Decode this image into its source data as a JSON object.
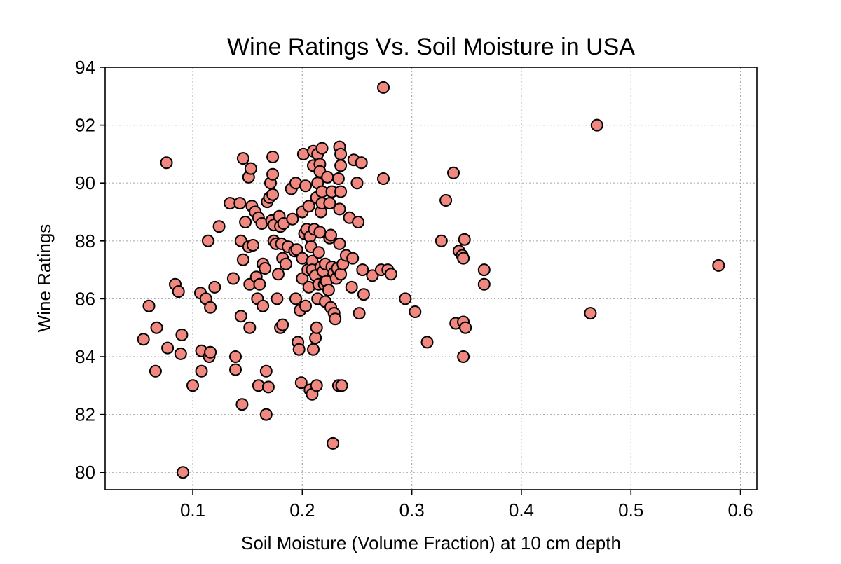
{
  "chart_data": {
    "type": "scatter",
    "title": "Wine Ratings Vs. Soil Moisture in USA",
    "xlabel": "Soil Moisture (Volume Fraction) at 10 cm depth",
    "ylabel": "Wine Ratings",
    "xlim": [
      0.02,
      0.615
    ],
    "ylim": [
      79.4,
      94
    ],
    "xticks": [
      0.1,
      0.2,
      0.3,
      0.4,
      0.5,
      0.6
    ],
    "xtick_labels": [
      "0.1",
      "0.2",
      "0.3",
      "0.4",
      "0.5",
      "0.6"
    ],
    "yticks": [
      80,
      82,
      84,
      86,
      88,
      90,
      92,
      94
    ],
    "ytick_labels": [
      "80",
      "82",
      "84",
      "86",
      "88",
      "90",
      "92",
      "94"
    ],
    "grid": true,
    "grid_style": "dotted",
    "legend": "none",
    "marker_color": "#f08880",
    "marker_edge_color": "#000000",
    "points": [
      [
        0.055,
        84.6
      ],
      [
        0.06,
        85.75
      ],
      [
        0.066,
        83.5
      ],
      [
        0.067,
        85.0
      ],
      [
        0.076,
        90.7
      ],
      [
        0.077,
        84.3
      ],
      [
        0.084,
        86.5
      ],
      [
        0.087,
        86.25
      ],
      [
        0.089,
        84.1
      ],
      [
        0.09,
        84.75
      ],
      [
        0.091,
        80.0
      ],
      [
        0.1,
        83.0
      ],
      [
        0.107,
        86.2
      ],
      [
        0.108,
        84.2
      ],
      [
        0.108,
        83.5
      ],
      [
        0.112,
        86.0
      ],
      [
        0.114,
        88.0
      ],
      [
        0.115,
        84.0
      ],
      [
        0.116,
        85.7
      ],
      [
        0.116,
        84.15
      ],
      [
        0.12,
        86.4
      ],
      [
        0.124,
        88.5
      ],
      [
        0.134,
        89.3
      ],
      [
        0.137,
        86.7
      ],
      [
        0.139,
        84.0
      ],
      [
        0.139,
        83.55
      ],
      [
        0.143,
        89.3
      ],
      [
        0.144,
        88.0
      ],
      [
        0.144,
        85.4
      ],
      [
        0.145,
        82.35
      ],
      [
        0.146,
        90.85
      ],
      [
        0.146,
        87.35
      ],
      [
        0.148,
        88.65
      ],
      [
        0.151,
        87.8
      ],
      [
        0.151,
        90.2
      ],
      [
        0.152,
        86.5
      ],
      [
        0.152,
        85.0
      ],
      [
        0.153,
        90.5
      ],
      [
        0.154,
        89.2
      ],
      [
        0.155,
        87.85
      ],
      [
        0.157,
        89.0
      ],
      [
        0.158,
        86.75
      ],
      [
        0.159,
        86.0
      ],
      [
        0.16,
        88.8
      ],
      [
        0.16,
        83.0
      ],
      [
        0.161,
        86.5
      ],
      [
        0.163,
        88.6
      ],
      [
        0.164,
        87.2
      ],
      [
        0.164,
        85.75
      ],
      [
        0.166,
        87.05
      ],
      [
        0.167,
        82.0
      ],
      [
        0.167,
        83.5
      ],
      [
        0.168,
        89.35
      ],
      [
        0.169,
        82.95
      ],
      [
        0.17,
        89.5
      ],
      [
        0.171,
        90.0
      ],
      [
        0.172,
        88.7
      ],
      [
        0.173,
        90.9
      ],
      [
        0.173,
        90.3
      ],
      [
        0.173,
        89.6
      ],
      [
        0.174,
        88.55
      ],
      [
        0.174,
        88.0
      ],
      [
        0.176,
        87.9
      ],
      [
        0.177,
        86.0
      ],
      [
        0.178,
        86.85
      ],
      [
        0.179,
        88.85
      ],
      [
        0.18,
        88.5
      ],
      [
        0.18,
        85.0
      ],
      [
        0.181,
        87.9
      ],
      [
        0.182,
        85.1
      ],
      [
        0.182,
        87.4
      ],
      [
        0.183,
        88.6
      ],
      [
        0.185,
        87.2
      ],
      [
        0.187,
        87.8
      ],
      [
        0.19,
        89.8
      ],
      [
        0.191,
        88.75
      ],
      [
        0.193,
        87.65
      ],
      [
        0.194,
        90.0
      ],
      [
        0.194,
        86.0
      ],
      [
        0.195,
        87.7
      ],
      [
        0.196,
        84.5
      ],
      [
        0.197,
        84.25
      ],
      [
        0.198,
        85.6
      ],
      [
        0.199,
        83.1
      ],
      [
        0.2,
        89.0
      ],
      [
        0.2,
        87.4
      ],
      [
        0.2,
        86.7
      ],
      [
        0.201,
        91.0
      ],
      [
        0.202,
        88.25
      ],
      [
        0.203,
        89.9
      ],
      [
        0.203,
        85.75
      ],
      [
        0.204,
        88.4
      ],
      [
        0.205,
        87.0
      ],
      [
        0.206,
        89.2
      ],
      [
        0.206,
        86.4
      ],
      [
        0.207,
        82.85
      ],
      [
        0.207,
        88.15
      ],
      [
        0.208,
        87.8
      ],
      [
        0.209,
        87.3
      ],
      [
        0.209,
        87.0
      ],
      [
        0.209,
        82.7
      ],
      [
        0.21,
        84.25
      ],
      [
        0.21,
        90.6
      ],
      [
        0.21,
        91.1
      ],
      [
        0.211,
        88.4
      ],
      [
        0.212,
        86.8
      ],
      [
        0.212,
        84.65
      ],
      [
        0.213,
        83.0
      ],
      [
        0.213,
        89.5
      ],
      [
        0.213,
        85.0
      ],
      [
        0.214,
        91.0
      ],
      [
        0.214,
        86.0
      ],
      [
        0.214,
        90.0
      ],
      [
        0.215,
        87.6
      ],
      [
        0.215,
        86.5
      ],
      [
        0.216,
        90.65
      ],
      [
        0.216,
        90.4
      ],
      [
        0.216,
        88.3
      ],
      [
        0.217,
        89.0
      ],
      [
        0.217,
        87.1
      ],
      [
        0.218,
        91.2
      ],
      [
        0.218,
        89.3
      ],
      [
        0.218,
        89.7
      ],
      [
        0.219,
        86.95
      ],
      [
        0.22,
        86.5
      ],
      [
        0.221,
        87.2
      ],
      [
        0.221,
        85.9
      ],
      [
        0.222,
        86.6
      ],
      [
        0.223,
        90.2
      ],
      [
        0.224,
        86.3
      ],
      [
        0.225,
        89.3
      ],
      [
        0.225,
        88.1
      ],
      [
        0.226,
        88.2
      ],
      [
        0.226,
        85.7
      ],
      [
        0.227,
        89.7
      ],
      [
        0.227,
        87.1
      ],
      [
        0.228,
        81.0
      ],
      [
        0.229,
        86.9
      ],
      [
        0.229,
        85.5
      ],
      [
        0.23,
        85.3
      ],
      [
        0.231,
        86.7
      ],
      [
        0.232,
        87.05
      ],
      [
        0.233,
        90.15
      ],
      [
        0.233,
        83.0
      ],
      [
        0.234,
        91.25
      ],
      [
        0.234,
        89.1
      ],
      [
        0.234,
        87.9
      ],
      [
        0.235,
        91.0
      ],
      [
        0.235,
        90.6
      ],
      [
        0.235,
        89.7
      ],
      [
        0.235,
        86.85
      ],
      [
        0.236,
        83.0
      ],
      [
        0.237,
        87.2
      ],
      [
        0.24,
        87.5
      ],
      [
        0.243,
        88.8
      ],
      [
        0.245,
        86.4
      ],
      [
        0.246,
        87.4
      ],
      [
        0.247,
        90.8
      ],
      [
        0.25,
        90.0
      ],
      [
        0.251,
        88.65
      ],
      [
        0.252,
        85.5
      ],
      [
        0.254,
        90.7
      ],
      [
        0.255,
        87.0
      ],
      [
        0.256,
        86.15
      ],
      [
        0.264,
        86.8
      ],
      [
        0.272,
        87.0
      ],
      [
        0.274,
        93.3
      ],
      [
        0.274,
        90.15
      ],
      [
        0.278,
        87.0
      ],
      [
        0.281,
        86.85
      ],
      [
        0.294,
        86.0
      ],
      [
        0.303,
        85.55
      ],
      [
        0.314,
        84.5
      ],
      [
        0.327,
        88.0
      ],
      [
        0.331,
        89.4
      ],
      [
        0.338,
        90.35
      ],
      [
        0.34,
        85.15
      ],
      [
        0.343,
        87.65
      ],
      [
        0.346,
        87.5
      ],
      [
        0.347,
        84.0
      ],
      [
        0.347,
        87.4
      ],
      [
        0.347,
        85.2
      ],
      [
        0.348,
        88.05
      ],
      [
        0.349,
        85.0
      ],
      [
        0.366,
        87.0
      ],
      [
        0.366,
        86.5
      ],
      [
        0.463,
        85.5
      ],
      [
        0.469,
        92.0
      ],
      [
        0.58,
        87.15
      ]
    ]
  }
}
